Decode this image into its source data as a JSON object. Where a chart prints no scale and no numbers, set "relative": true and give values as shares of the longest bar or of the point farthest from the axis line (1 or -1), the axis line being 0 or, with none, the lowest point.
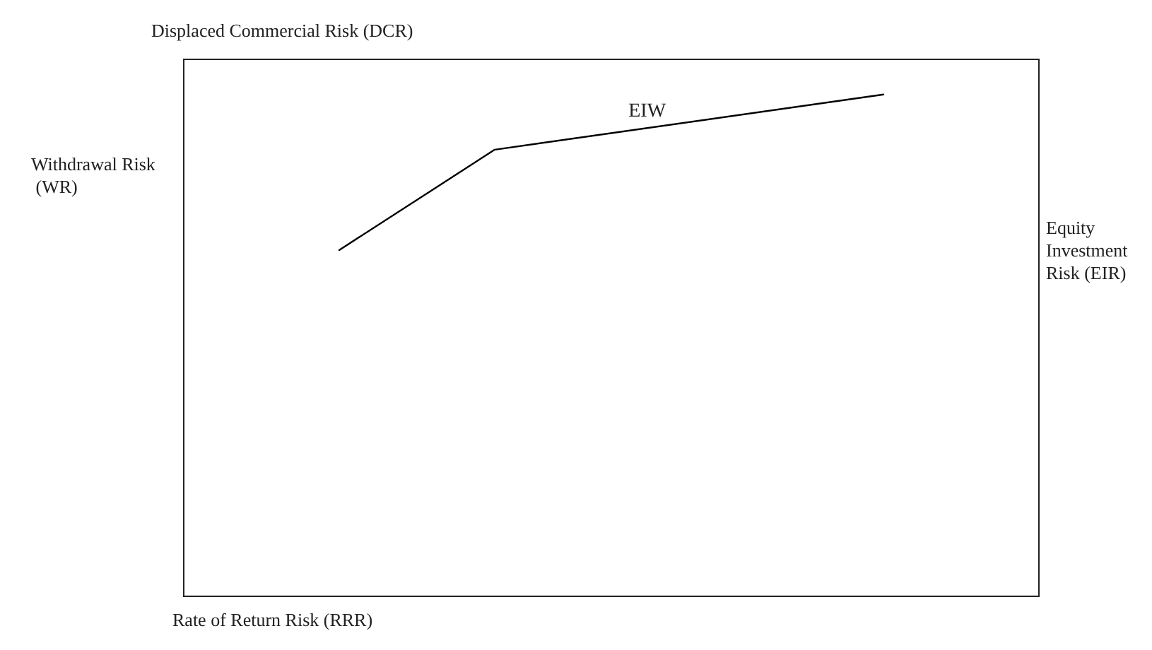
{
  "chart_data": {
    "type": "line",
    "relative": true,
    "title": "Displaced Commercial Risk (DCR)",
    "xlabel": "Rate of Return Risk (RRR)",
    "ylabel": "Withdrawal Risk (WR)",
    "y2label": "Equity Investment Risk (EIR)",
    "annotations": [
      "EIW"
    ],
    "categories": [
      null,
      null,
      null,
      null,
      null,
      null,
      null,
      null,
      null,
      null,
      null,
      null
    ],
    "series": [
      {
        "color": "#000000",
        "values": [
          null,
          null,
          0.69,
          null,
          0.89,
          null,
          null,
          null,
          null,
          1,
          null,
          null
        ]
      }
    ],
    "marker": "none",
    "line_style": "solid",
    "grid": false
  }
}
